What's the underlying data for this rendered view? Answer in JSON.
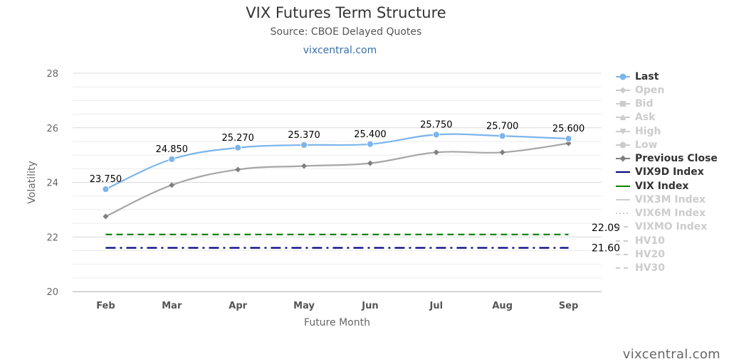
{
  "title": "VIX Futures Term Structure",
  "subtitle": "Source: CBOE Delayed Quotes",
  "site_link": "vixcentral.com",
  "credit": "vixcentral.com",
  "legend": [
    {
      "label": "Last",
      "enabled": true,
      "color": "#7cb5ec",
      "symbol": "circle"
    },
    {
      "label": "Open",
      "enabled": false,
      "color": "#cccccc",
      "symbol": "diamond"
    },
    {
      "label": "Bid",
      "enabled": false,
      "color": "#cccccc",
      "symbol": "square"
    },
    {
      "label": "Ask",
      "enabled": false,
      "color": "#cccccc",
      "symbol": "triangle"
    },
    {
      "label": "High",
      "enabled": false,
      "color": "#cccccc",
      "symbol": "triangle-down"
    },
    {
      "label": "Low",
      "enabled": false,
      "color": "#cccccc",
      "symbol": "circle"
    },
    {
      "label": "Previous Close",
      "enabled": true,
      "color": "#7f7f7f",
      "symbol": "diamond"
    },
    {
      "label": "VIX9D Index",
      "enabled": true,
      "color": "#000080",
      "symbol": "line"
    },
    {
      "label": "VIX Index",
      "enabled": true,
      "color": "#008000",
      "symbol": "line"
    },
    {
      "label": "VIX3M Index",
      "enabled": false,
      "color": "#cccccc",
      "symbol": "line"
    },
    {
      "label": "VIX6M Index",
      "enabled": false,
      "color": "#cccccc",
      "symbol": "dotted"
    },
    {
      "label": "VIXMO Index",
      "enabled": false,
      "color": "#cccccc",
      "symbol": "dashed"
    },
    {
      "label": "HV10",
      "enabled": false,
      "color": "#cccccc",
      "symbol": "dashed"
    },
    {
      "label": "HV20",
      "enabled": false,
      "color": "#cccccc",
      "symbol": "dashed"
    },
    {
      "label": "HV30",
      "enabled": false,
      "color": "#cccccc",
      "symbol": "dashed"
    }
  ],
  "chart_data": {
    "type": "line",
    "title": "VIX Futures Term Structure",
    "subtitle": "Source: CBOE Delayed Quotes",
    "xlabel": "Future Month",
    "ylabel": "Volatility",
    "categories": [
      "Feb",
      "Mar",
      "Apr",
      "May",
      "Jun",
      "Jul",
      "Aug",
      "Sep"
    ],
    "ylim": [
      20,
      28
    ],
    "yticks": [
      20,
      22,
      24,
      26,
      28
    ],
    "grid": true,
    "legend_position": "right",
    "series": [
      {
        "name": "Last",
        "color": "#7cb5ec",
        "values": [
          23.75,
          24.85,
          25.27,
          25.37,
          25.4,
          25.75,
          25.7,
          25.6
        ],
        "labels": [
          "23.750",
          "24.850",
          "25.270",
          "25.370",
          "25.400",
          "25.750",
          "25.700",
          "25.600"
        ]
      },
      {
        "name": "Previous Close",
        "color": "#a6a6a6",
        "marker_color": "#7f7f7f",
        "values": [
          22.75,
          23.9,
          24.47,
          24.6,
          24.7,
          25.1,
          25.1,
          25.43
        ]
      }
    ],
    "reference_lines": [
      {
        "name": "VIX Index",
        "value": 22.09,
        "label": "22.09",
        "color": "#008000",
        "style": "dash"
      },
      {
        "name": "VIX9D Index",
        "value": 21.6,
        "label": "21.60",
        "color": "#000080",
        "style": "dashdot"
      }
    ]
  }
}
